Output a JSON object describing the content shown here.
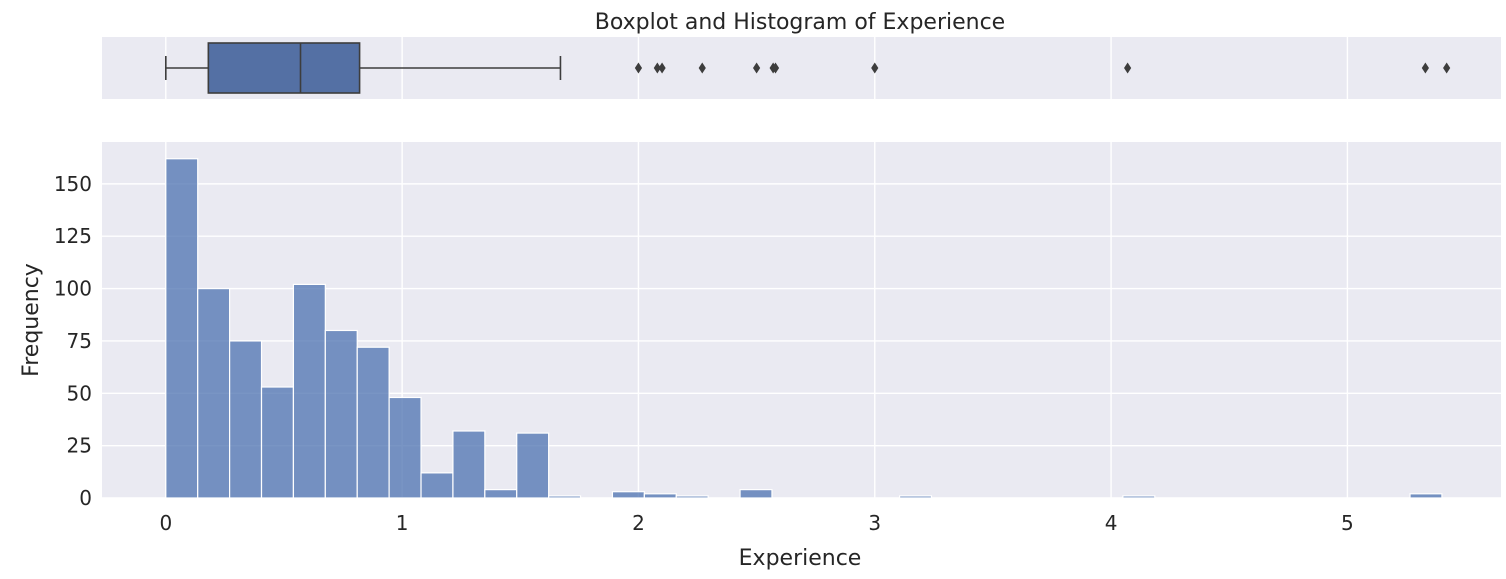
{
  "chart_data": [
    {
      "type": "box",
      "title": "Boxplot and Histogram of Experience",
      "variable": "Experience",
      "q1": 0.18,
      "median": 0.57,
      "q3": 0.82,
      "whisker_low": 0.0,
      "whisker_high": 1.67,
      "outliers": [
        2.0,
        2.08,
        2.1,
        2.27,
        2.5,
        2.57,
        2.58,
        3.0,
        4.07,
        5.33,
        5.42
      ],
      "xlim": [
        -0.27,
        5.65
      ],
      "color": "#4c72b0"
    },
    {
      "type": "bar",
      "subtype": "histogram",
      "xlabel": "Experience",
      "ylabel": "Frequency",
      "bin_start": 0.0,
      "bin_width": 0.135,
      "values": [
        162,
        100,
        75,
        53,
        102,
        80,
        72,
        48,
        12,
        32,
        4,
        31,
        1,
        0,
        3,
        2,
        1,
        0,
        4,
        0,
        0,
        0,
        0,
        1,
        0,
        0,
        0,
        0,
        0,
        0,
        1,
        0,
        0,
        0,
        0,
        0,
        0,
        0,
        0,
        2
      ],
      "xlim": [
        -0.27,
        5.65
      ],
      "ylim": [
        0,
        170
      ],
      "xticks": [
        0,
        1,
        2,
        3,
        4,
        5
      ],
      "yticks": [
        0,
        25,
        50,
        75,
        100,
        125,
        150
      ],
      "color": "#4c72b0",
      "grid": true
    }
  ]
}
